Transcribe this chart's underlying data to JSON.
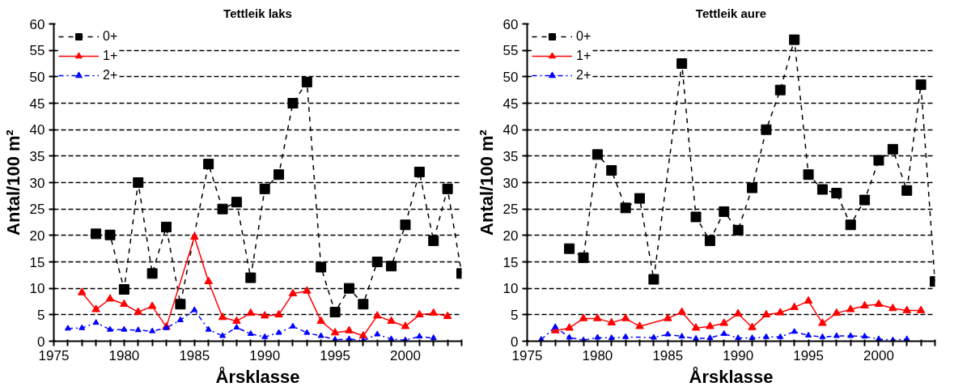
{
  "chart_data": [
    {
      "type": "line",
      "title": "Tettleik laks",
      "xlabel": "Årsklasse",
      "ylabel": "Antal/100 m²",
      "xlim": [
        1975,
        2004
      ],
      "ylim": [
        0,
        60
      ],
      "xticks": [
        1975,
        {
          "value": 1976,
          "label": null
        },
        {
          "value": 1977,
          "label": null
        },
        {
          "value": 1978,
          "label": null
        },
        {
          "value": 1979,
          "label": null
        },
        1980,
        {
          "value": 1981,
          "label": null
        },
        {
          "value": 1982,
          "label": null
        },
        {
          "value": 1983,
          "label": null
        },
        {
          "value": 1984,
          "label": null
        },
        1985,
        {
          "value": 1986,
          "label": null
        },
        {
          "value": 1987,
          "label": null
        },
        {
          "value": 1988,
          "label": null
        },
        {
          "value": 1989,
          "label": null
        },
        1990,
        {
          "value": 1991,
          "label": null
        },
        {
          "value": 1992,
          "label": null
        },
        {
          "value": 1993,
          "label": null
        },
        {
          "value": 1994,
          "label": null
        },
        1995,
        {
          "value": 1996,
          "label": null
        },
        {
          "value": 1997,
          "label": null
        },
        {
          "value": 1998,
          "label": null
        },
        {
          "value": 1999,
          "label": null
        },
        2000,
        {
          "value": 2001,
          "label": null
        },
        {
          "value": 2002,
          "label": null
        },
        {
          "value": 2003,
          "label": null
        },
        {
          "value": 2004,
          "label": null
        }
      ],
      "yticks": [
        0,
        5,
        10,
        15,
        20,
        25,
        30,
        35,
        40,
        45,
        50,
        55,
        60
      ],
      "grid": "y",
      "legend": "top left",
      "series": [
        {
          "name": "0+",
          "color": "#000000",
          "marker": "square",
          "line_style": "dashed",
          "x": [
            1978,
            1979,
            1980,
            1981,
            1982,
            1983,
            1984,
            1986,
            1987,
            1988,
            1989,
            1990,
            1991,
            1992,
            1993,
            1994,
            1995,
            1996,
            1997,
            1998,
            1999,
            2000,
            2001,
            2002,
            2003,
            2004
          ],
          "values": [
            20.3,
            20.1,
            9.8,
            30,
            12.8,
            21.6,
            7,
            33.5,
            25,
            26.3,
            12,
            28.8,
            31.5,
            45,
            49,
            14,
            5.5,
            10,
            7,
            15,
            14.2,
            22,
            32,
            19,
            28.8,
            12.8
          ]
        },
        {
          "name": "1+",
          "color": "#ff0000",
          "marker": "triangle",
          "line_style": "solid",
          "x": [
            1977,
            1978,
            1979,
            1980,
            1981,
            1982,
            1983,
            1985,
            1986,
            1987,
            1988,
            1989,
            1990,
            1991,
            1992,
            1993,
            1994,
            1995,
            1996,
            1997,
            1998,
            1999,
            2000,
            2001,
            2002,
            2003
          ],
          "values": [
            9.2,
            6,
            8,
            7,
            5.5,
            6.6,
            2.7,
            19.7,
            11.3,
            4.5,
            3.8,
            5.3,
            4.8,
            5,
            9,
            9.5,
            3.8,
            1.6,
            2,
            1,
            4.8,
            3.8,
            2.8,
            5,
            5.3,
            4.7
          ]
        },
        {
          "name": "2+",
          "color": "#0000ff",
          "marker": "triangle",
          "line_style": "dotted",
          "x": [
            1976,
            1977,
            1978,
            1979,
            1980,
            1981,
            1982,
            1983,
            1984,
            1985,
            1986,
            1987,
            1988,
            1989,
            1990,
            1991,
            1992,
            1993,
            1994,
            1995,
            1996,
            1997,
            1998,
            1999,
            2000,
            2001,
            2002
          ],
          "values": [
            2.4,
            2.5,
            3.5,
            2.2,
            2.2,
            2.1,
            1.9,
            2.5,
            4,
            5.9,
            2.2,
            1,
            2.6,
            1.4,
            0.8,
            1.6,
            2.8,
            1.6,
            1,
            0.3,
            0.4,
            0.1,
            1.3,
            0.4,
            0.2,
            0.9,
            0.6
          ]
        }
      ]
    },
    {
      "type": "line",
      "title": "Tettleik aure",
      "xlabel": "Årsklasse",
      "ylabel": "Antal/100 m²",
      "xlim": [
        1975,
        2004
      ],
      "ylim": [
        0,
        60
      ],
      "xticks": [
        1975,
        {
          "value": 1976,
          "label": null
        },
        {
          "value": 1977,
          "label": null
        },
        {
          "value": 1978,
          "label": null
        },
        {
          "value": 1979,
          "label": null
        },
        1980,
        {
          "value": 1981,
          "label": null
        },
        {
          "value": 1982,
          "label": null
        },
        {
          "value": 1983,
          "label": null
        },
        {
          "value": 1984,
          "label": null
        },
        1985,
        {
          "value": 1986,
          "label": null
        },
        {
          "value": 1987,
          "label": null
        },
        {
          "value": 1988,
          "label": null
        },
        {
          "value": 1989,
          "label": null
        },
        1990,
        {
          "value": 1991,
          "label": null
        },
        {
          "value": 1992,
          "label": null
        },
        {
          "value": 1993,
          "label": null
        },
        {
          "value": 1994,
          "label": null
        },
        1995,
        {
          "value": 1996,
          "label": null
        },
        {
          "value": 1997,
          "label": null
        },
        {
          "value": 1998,
          "label": null
        },
        {
          "value": 1999,
          "label": null
        },
        2000,
        {
          "value": 2001,
          "label": null
        },
        {
          "value": 2002,
          "label": null
        },
        {
          "value": 2003,
          "label": null
        },
        {
          "value": 2004,
          "label": null
        }
      ],
      "yticks": [
        0,
        5,
        10,
        15,
        20,
        25,
        30,
        35,
        40,
        45,
        50,
        55,
        60
      ],
      "grid": "y",
      "legend": "top left",
      "series": [
        {
          "name": "0+",
          "color": "#000000",
          "marker": "square",
          "line_style": "dashed",
          "x": [
            1978,
            1979,
            1980,
            1981,
            1982,
            1983,
            1984,
            1986,
            1987,
            1988,
            1989,
            1990,
            1991,
            1992,
            1993,
            1994,
            1995,
            1996,
            1997,
            1998,
            1999,
            2000,
            2001,
            2002,
            2003,
            2004
          ],
          "values": [
            17.5,
            15.8,
            35.3,
            32.3,
            25.2,
            27,
            11.7,
            52.5,
            23.5,
            19,
            24.5,
            21,
            29,
            40,
            47.5,
            57,
            31.5,
            28.7,
            28,
            22,
            26.7,
            34.2,
            36.3,
            28.5,
            48.5,
            11.3
          ]
        },
        {
          "name": "1+",
          "color": "#ff0000",
          "marker": "triangle",
          "line_style": "solid",
          "x": [
            1977,
            1978,
            1979,
            1980,
            1981,
            1982,
            1983,
            1985,
            1986,
            1987,
            1988,
            1989,
            1990,
            1991,
            1992,
            1993,
            1994,
            1995,
            1996,
            1997,
            1998,
            1999,
            2000,
            2001,
            2002,
            2003
          ],
          "values": [
            2,
            2.5,
            4.3,
            4.3,
            3.5,
            4.3,
            2.8,
            4.3,
            5.5,
            2.5,
            2.8,
            3.4,
            5.2,
            2.6,
            5,
            5.4,
            6.4,
            7.6,
            3.4,
            5.3,
            6,
            6.7,
            7,
            6.2,
            5.8,
            5.8
          ]
        },
        {
          "name": "2+",
          "color": "#0000ff",
          "marker": "triangle",
          "line_style": "dotted",
          "x": [
            1976,
            1977,
            1978,
            1979,
            1980,
            1981,
            1982,
            1984,
            1985,
            1986,
            1987,
            1988,
            1989,
            1990,
            1991,
            1992,
            1993,
            1994,
            1995,
            1996,
            1997,
            1998,
            1999,
            2000,
            2001,
            2002
          ],
          "values": [
            0.3,
            2.7,
            0.7,
            0.2,
            0.7,
            0.6,
            0.8,
            0.7,
            1.3,
            0.9,
            0.5,
            0.6,
            1.4,
            0.6,
            0.6,
            0.8,
            0.8,
            1.8,
            1.1,
            0.8,
            1,
            1,
            0.9,
            0.4,
            0.2,
            0.4
          ]
        }
      ]
    }
  ]
}
